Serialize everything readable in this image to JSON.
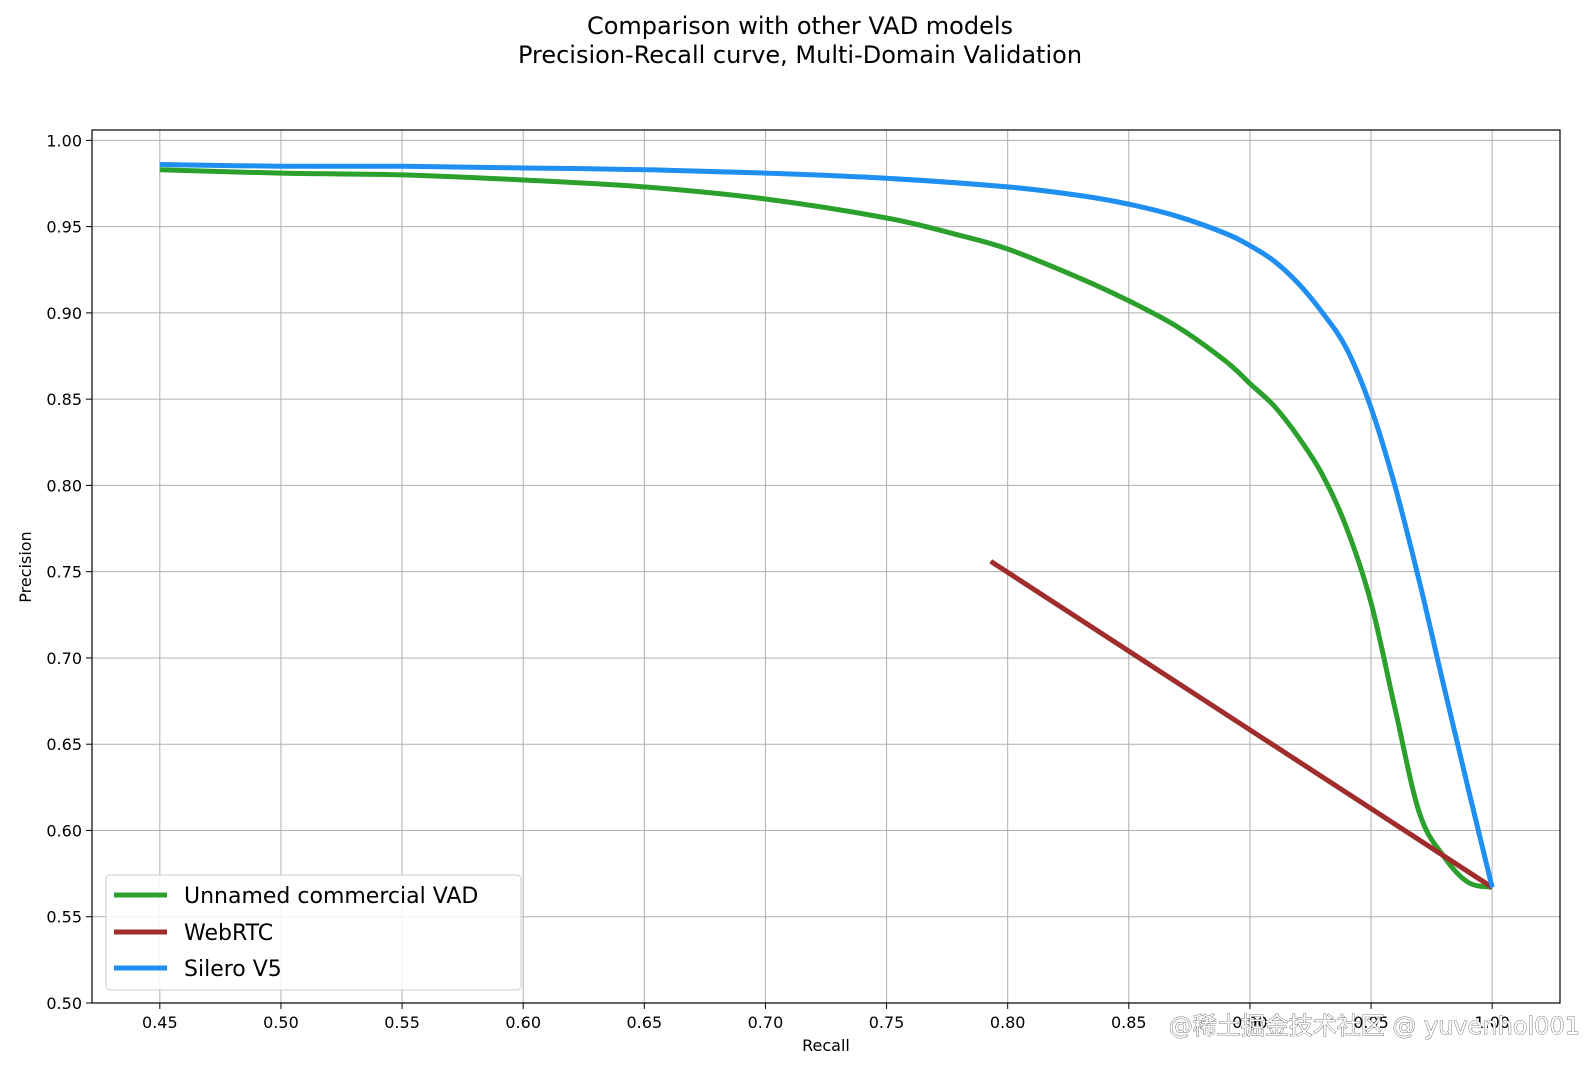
{
  "chart_data": {
    "type": "line",
    "title": [
      "Comparison with other VAD models",
      "Precision-Recall curve, Multi-Domain Validation"
    ],
    "xlabel": "Recall",
    "ylabel": "Precision",
    "xlim": [
      0.422,
      1.028
    ],
    "ylim": [
      0.5,
      1.006
    ],
    "xticks": [
      "0.45",
      "0.50",
      "0.55",
      "0.60",
      "0.65",
      "0.70",
      "0.75",
      "0.80",
      "0.85",
      "0.90",
      "0.95",
      "1.00"
    ],
    "yticks": [
      "0.50",
      "0.55",
      "0.60",
      "0.65",
      "0.70",
      "0.75",
      "0.80",
      "0.85",
      "0.90",
      "0.95",
      "1.00"
    ],
    "grid": true,
    "legend_position": "lower-left",
    "series": [
      {
        "name": "Unnamed commercial VAD",
        "color": "#2ca02c",
        "x": [
          0.45,
          0.5,
          0.55,
          0.6,
          0.65,
          0.7,
          0.75,
          0.78,
          0.8,
          0.83,
          0.85,
          0.87,
          0.89,
          0.9,
          0.91,
          0.92,
          0.93,
          0.94,
          0.95,
          0.96,
          0.97,
          0.98,
          0.99,
          1.0
        ],
        "y": [
          0.983,
          0.981,
          0.98,
          0.977,
          0.973,
          0.966,
          0.955,
          0.945,
          0.937,
          0.92,
          0.907,
          0.892,
          0.872,
          0.859,
          0.846,
          0.828,
          0.806,
          0.775,
          0.732,
          0.67,
          0.61,
          0.585,
          0.57,
          0.567
        ]
      },
      {
        "name": "WebRTC",
        "color": "#a02c2c",
        "x": [
          0.793,
          1.0
        ],
        "y": [
          0.756,
          0.567
        ]
      },
      {
        "name": "Silero V5",
        "color": "#1f8ff2",
        "x": [
          0.45,
          0.5,
          0.55,
          0.6,
          0.65,
          0.7,
          0.75,
          0.8,
          0.83,
          0.85,
          0.87,
          0.89,
          0.9,
          0.91,
          0.92,
          0.93,
          0.94,
          0.95,
          0.96,
          0.97,
          0.98,
          0.99,
          1.0
        ],
        "y": [
          0.986,
          0.985,
          0.985,
          0.984,
          0.983,
          0.981,
          0.978,
          0.973,
          0.968,
          0.963,
          0.956,
          0.946,
          0.939,
          0.93,
          0.917,
          0.9,
          0.879,
          0.845,
          0.799,
          0.744,
          0.684,
          0.625,
          0.567
        ]
      }
    ]
  },
  "watermark": "@稀土掘金技术社区 @ yuvenhol001"
}
